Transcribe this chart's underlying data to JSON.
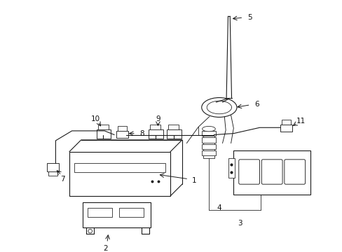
{
  "background_color": "#ffffff",
  "line_color": "#1a1a1a",
  "lw": 0.8,
  "fig_width": 4.89,
  "fig_height": 3.6,
  "dpi": 100
}
